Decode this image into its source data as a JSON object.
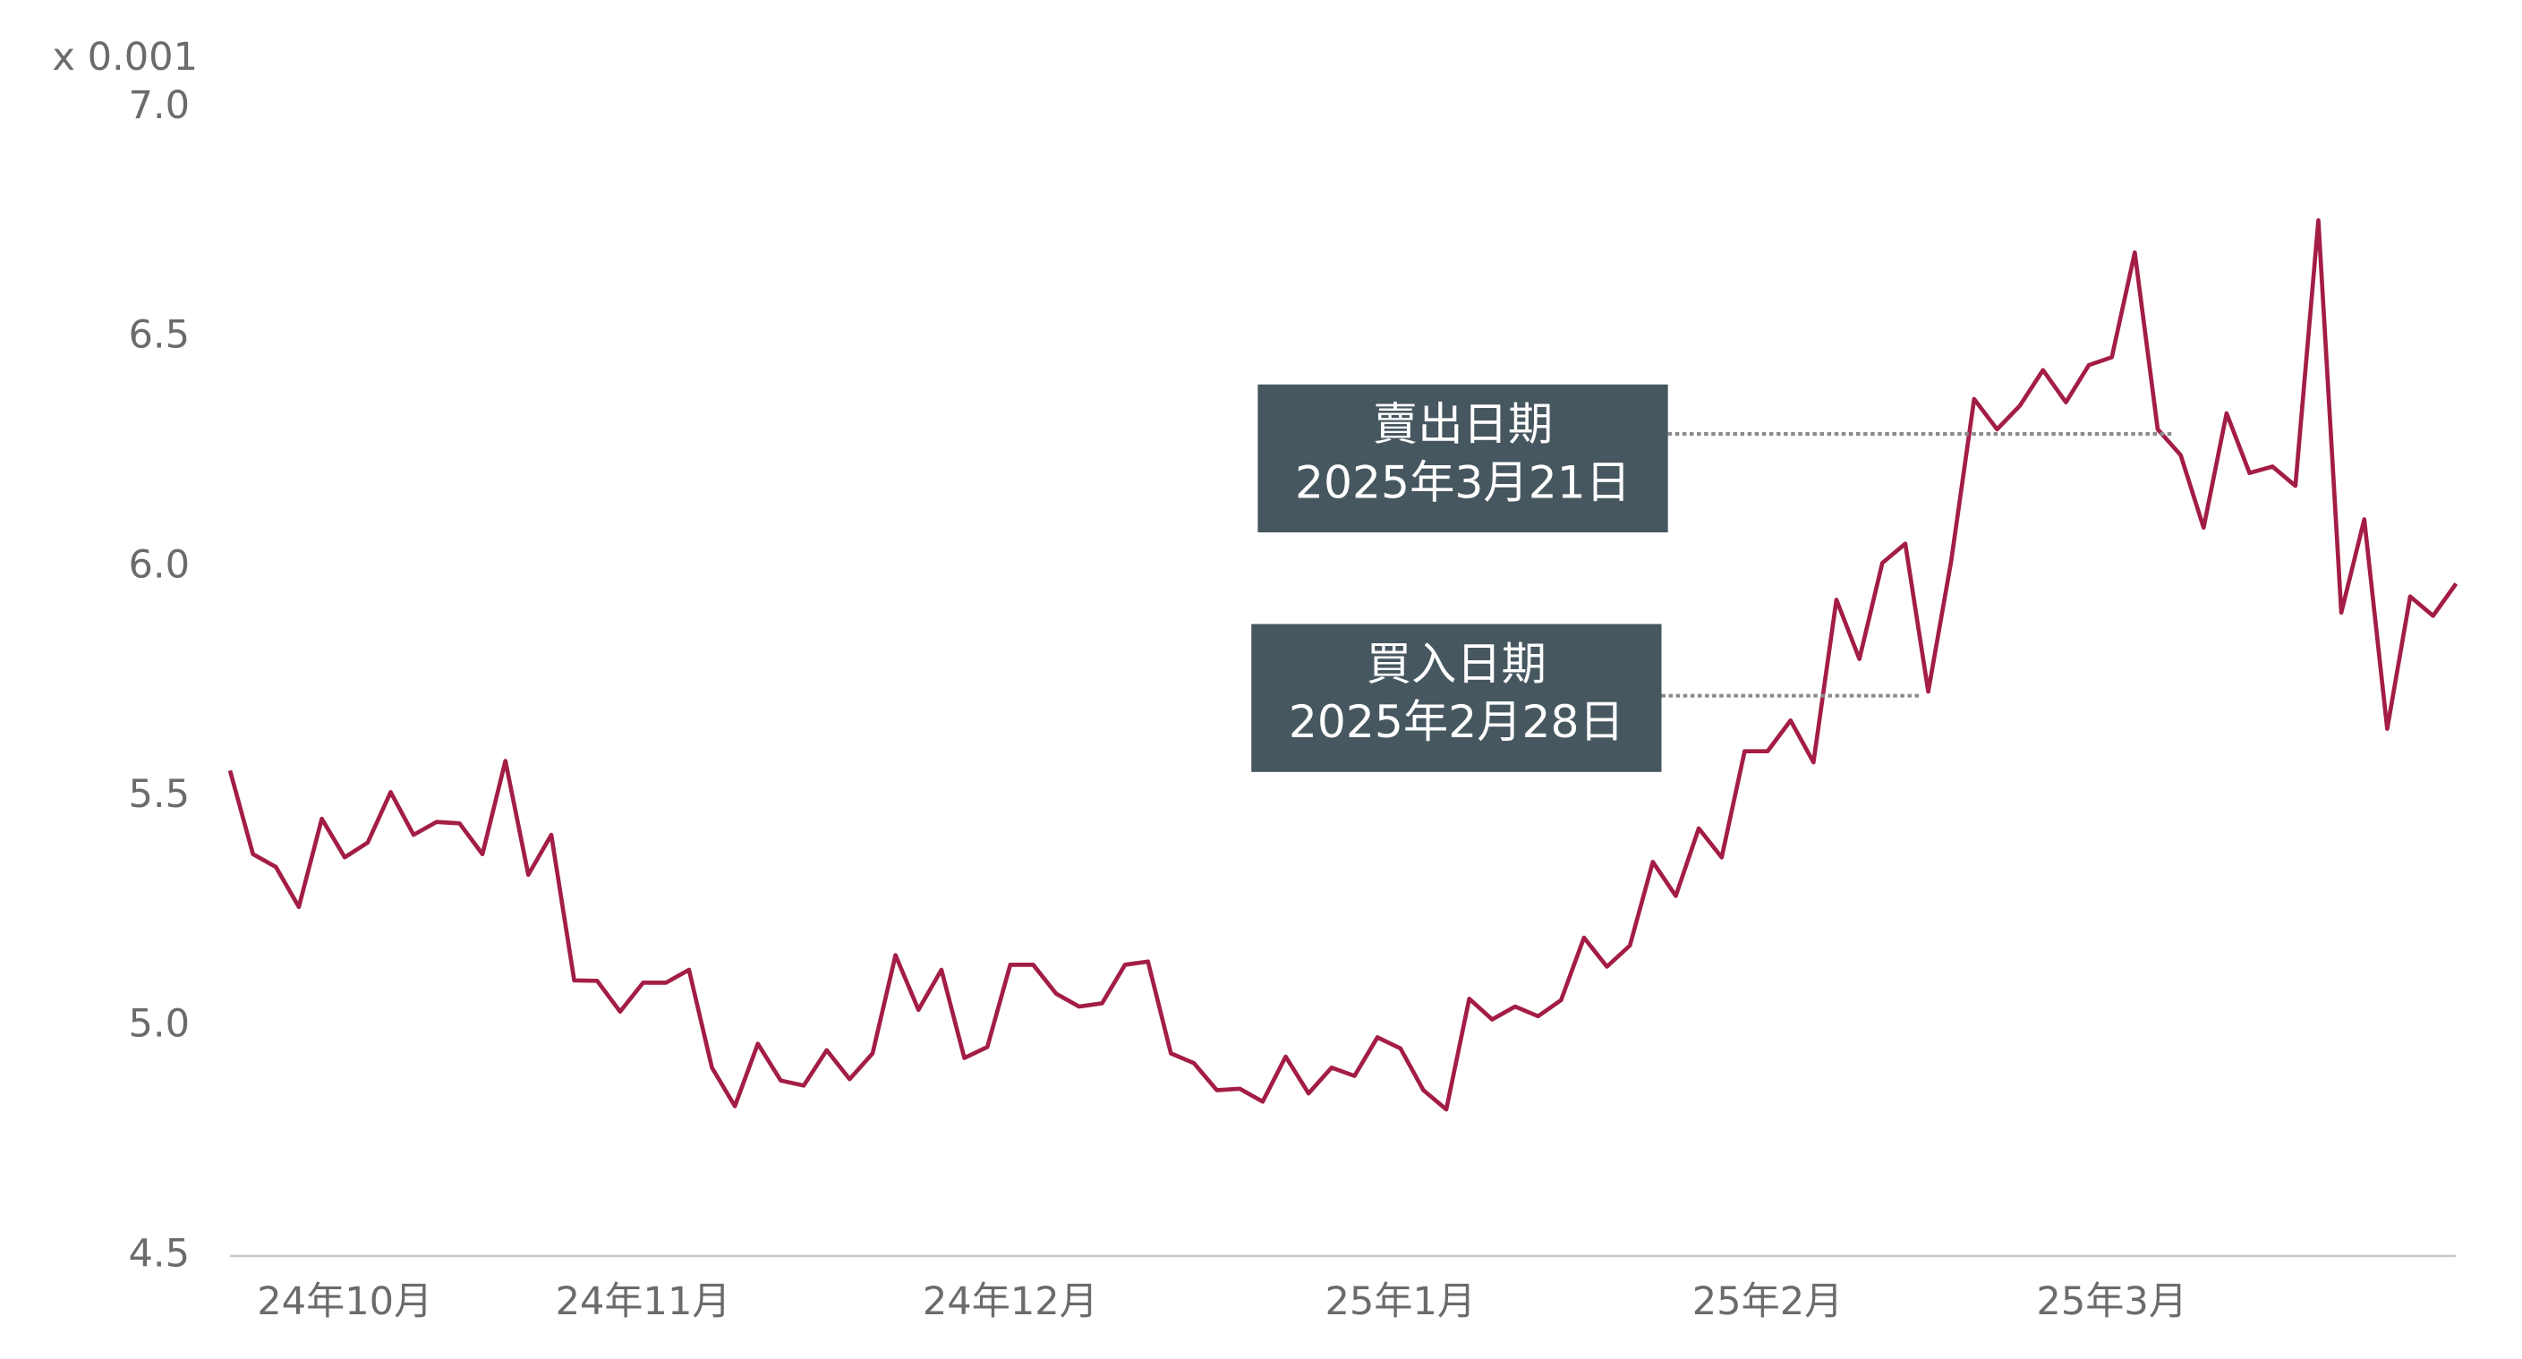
{
  "chart_data": {
    "type": "line",
    "axis_unit": "x 0.001",
    "ylim": [
      4.5,
      7.0
    ],
    "yticks": [
      4.5,
      {
        "value": 5.0,
        "label": "5.0"
      },
      5.5,
      {
        "value": 6.0,
        "label": "6.0"
      },
      6.5,
      {
        "value": 7.0,
        "label": "7.0"
      }
    ],
    "grid": false,
    "color": "#a31d45",
    "categories": [
      null,
      null,
      null,
      null,
      null,
      "24年10月",
      null,
      null,
      null,
      null,
      null,
      null,
      null,
      null,
      null,
      null,
      null,
      null,
      "24年11月",
      null,
      null,
      null,
      null,
      null,
      null,
      null,
      null,
      null,
      null,
      null,
      null,
      null,
      null,
      null,
      "24年12月",
      null,
      null,
      null,
      null,
      null,
      null,
      null,
      null,
      null,
      null,
      null,
      null,
      null,
      null,
      null,
      null,
      "25年1月",
      null,
      null,
      null,
      null,
      null,
      null,
      null,
      null,
      null,
      null,
      null,
      null,
      null,
      null,
      null,
      "25年2月",
      null,
      null,
      null,
      null,
      null,
      null,
      null,
      null,
      null,
      null,
      null,
      null,
      null,
      null,
      "25年3月",
      null,
      null,
      null,
      null,
      null,
      null,
      null,
      null,
      null,
      null,
      null,
      null,
      null,
      null,
      null
    ],
    "values": [
      5.557,
      5.375,
      5.347,
      5.26,
      5.452,
      5.368,
      5.4,
      5.51,
      5.417,
      5.445,
      5.442,
      5.375,
      5.578,
      5.33,
      5.417,
      5.1,
      5.099,
      5.032,
      5.095,
      5.095,
      5.123,
      4.91,
      4.826,
      4.962,
      4.882,
      4.871,
      4.948,
      4.885,
      4.941,
      5.155,
      5.036,
      5.123,
      4.931,
      4.955,
      5.134,
      5.134,
      5.071,
      5.043,
      5.05,
      5.134,
      5.141,
      4.941,
      4.92,
      4.861,
      4.864,
      4.836,
      4.934,
      4.854,
      4.91,
      4.892,
      4.976,
      4.952,
      4.861,
      4.819,
      5.06,
      5.015,
      5.043,
      5.022,
      5.057,
      5.193,
      5.13,
      5.176,
      5.358,
      5.284,
      5.431,
      5.368,
      5.599,
      5.599,
      5.666,
      5.575,
      5.929,
      5.8,
      6.009,
      6.051,
      5.729,
      6.013,
      6.366,
      6.3,
      6.352,
      6.429,
      6.359,
      6.44,
      6.457,
      6.685,
      6.3,
      6.244,
      6.086,
      6.335,
      6.205,
      6.219,
      6.177,
      6.755,
      5.901,
      6.104,
      5.648,
      5.936,
      5.894,
      5.964
    ],
    "annotations": [
      {
        "lines": [
          "賣出日期",
          "2025年3月21日"
        ],
        "y": 6.29
      },
      {
        "lines": [
          "買入日期",
          "2025年2月28日"
        ],
        "y": 5.72
      }
    ]
  }
}
